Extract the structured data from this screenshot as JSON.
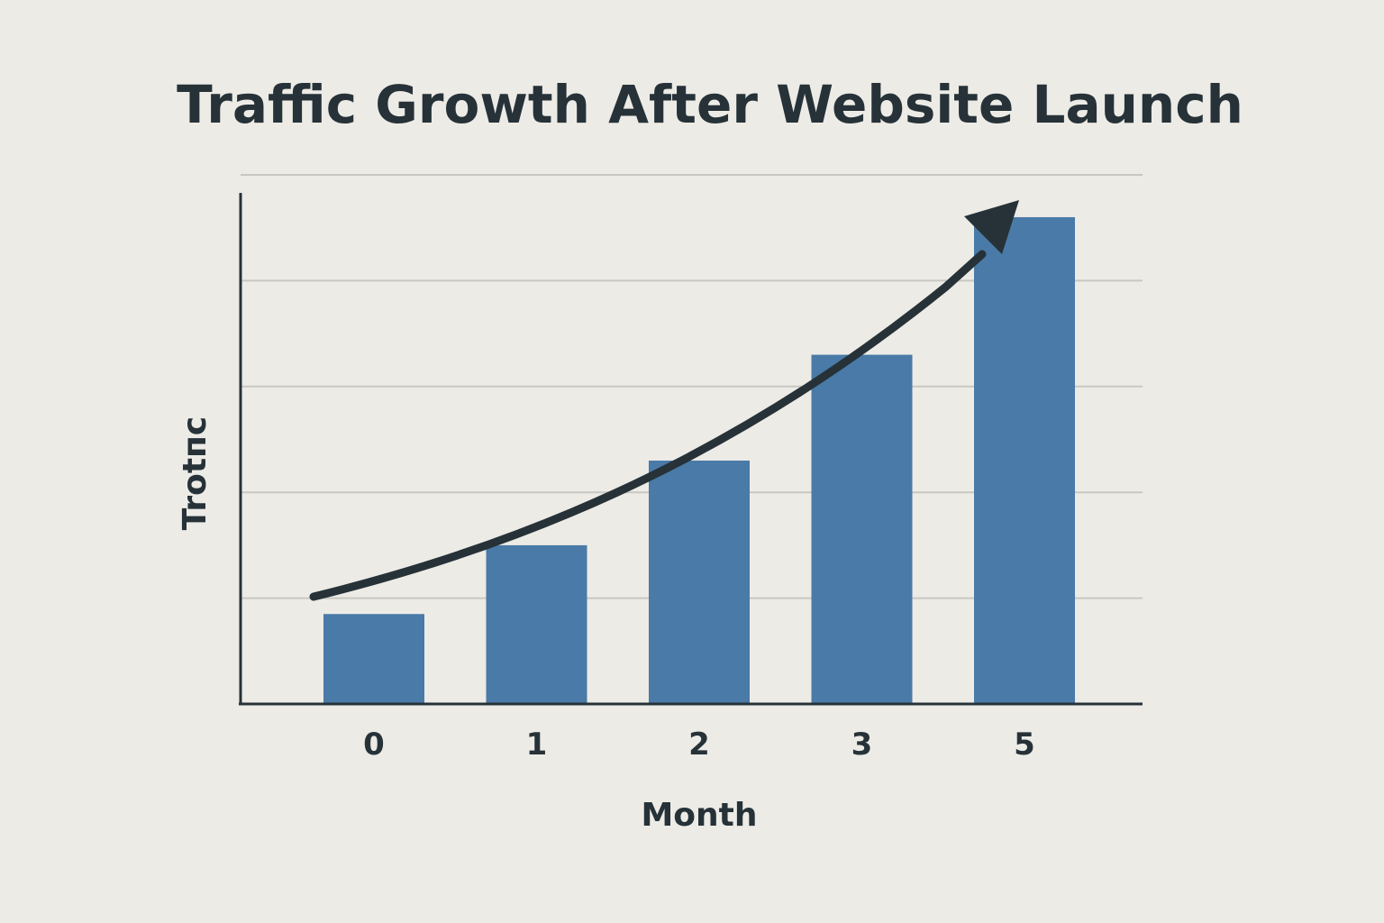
{
  "chart_data": {
    "type": "bar",
    "title": "Traffic Growth After Website Launch",
    "xlabel": "Month",
    "ylabel": "Trоtпc",
    "categories": [
      "0",
      "1",
      "2",
      "3",
      "5"
    ],
    "values": [
      0.85,
      1.5,
      2.3,
      3.3,
      4.6
    ],
    "ylim": [
      0,
      5
    ],
    "grid": true,
    "trend_arrow": true,
    "colors": {
      "bar": "#4a7aa7",
      "axis": "#263238",
      "grid": "#c9c7c2",
      "background": "#edebe6"
    }
  }
}
